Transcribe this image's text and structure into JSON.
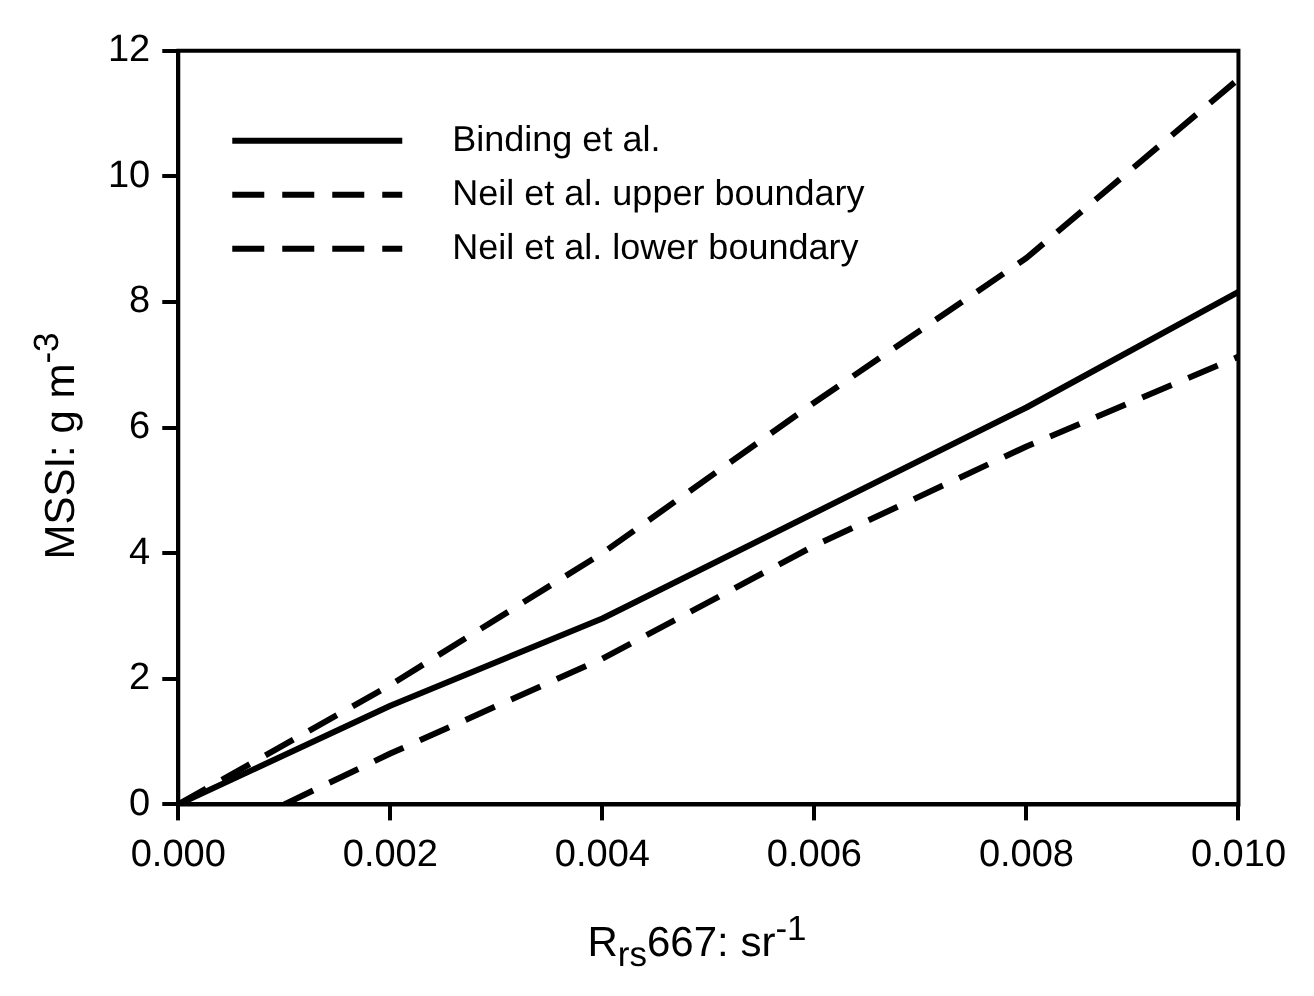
{
  "chart_data": {
    "type": "line",
    "xlabel": "R$_{rs}$667: sr$^{-1}$",
    "ylabel": "MSSI: g m$^{-3}$",
    "x": [
      0,
      0.002,
      0.004,
      0.006,
      0.008,
      0.01
    ],
    "series": [
      {
        "name": "Binding et al.",
        "color": "#000000",
        "line_style": "solid",
        "values": [
          0,
          1.57,
          2.96,
          4.64,
          6.32,
          8.16
        ]
      },
      {
        "name": "Neil et al. upper boundary",
        "color": "#000000",
        "line_style": "dashed",
        "values": [
          0,
          1.9,
          4.0,
          6.4,
          8.7,
          11.55
        ]
      },
      {
        "name": "Neil et al. lower boundary",
        "color": "#000000",
        "line_style": "dashed",
        "x": [
          0.001,
          0.002,
          0.004,
          0.006,
          0.008,
          0.01
        ],
        "values": [
          0,
          0.81,
          2.32,
          4.12,
          5.7,
          7.13
        ]
      }
    ],
    "xlim": [
      0,
      0.01
    ],
    "ylim": [
      0,
      12
    ],
    "xticks": [
      {
        "value": 0,
        "label": "0.000"
      },
      {
        "value": 0.002,
        "label": "0.002"
      },
      {
        "value": 0.004,
        "label": "0.004"
      },
      {
        "value": 0.006,
        "label": "0.006"
      },
      {
        "value": 0.008,
        "label": "0.008"
      },
      {
        "value": 0.01,
        "label": "0.010"
      }
    ],
    "yticks": [
      0,
      2,
      4,
      6,
      8,
      10,
      12
    ],
    "grid": false,
    "legend": "top left",
    "marker": "none"
  }
}
